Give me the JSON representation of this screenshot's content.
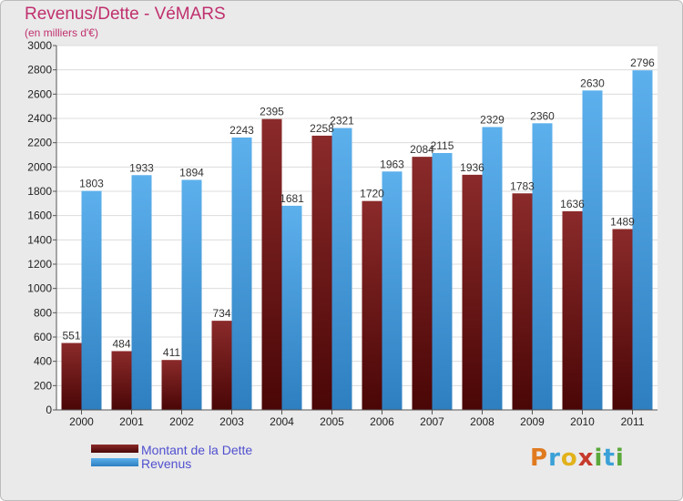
{
  "header": {
    "title": "Revenus/Dette - VéMARS",
    "subtitle": "(en milliers d'€)"
  },
  "logo": {
    "text": "Proxiti",
    "letters": [
      {
        "ch": "P",
        "color": "#e07a1f"
      },
      {
        "ch": "r",
        "color": "#3aa1d8"
      },
      {
        "ch": "o",
        "color": "#e2b21c"
      },
      {
        "ch": "x",
        "color": "#c63a2c"
      },
      {
        "ch": "i",
        "color": "#5aa83a"
      },
      {
        "ch": "t",
        "color": "#3aa1d8"
      },
      {
        "ch": "i",
        "color": "#5aa83a"
      }
    ]
  },
  "chart_data": {
    "type": "bar",
    "categories": [
      "2000",
      "2001",
      "2002",
      "2003",
      "2004",
      "2005",
      "2006",
      "2007",
      "2008",
      "2009",
      "2010",
      "2011"
    ],
    "series": [
      {
        "name": "Montant de la Dette",
        "values": [
          551,
          484,
          411,
          734,
          2395,
          2258,
          1720,
          2084,
          1936,
          1783,
          1636,
          1489
        ],
        "color": "#7a1f1f"
      },
      {
        "name": "Revenus",
        "values": [
          1803,
          1933,
          1894,
          2243,
          1681,
          2321,
          1963,
          2115,
          2329,
          2360,
          2630,
          2796
        ],
        "color": "#4ea3e4"
      }
    ],
    "ylim": [
      0,
      3000
    ],
    "yticks": [
      0,
      200,
      400,
      600,
      800,
      1000,
      1200,
      1400,
      1600,
      1800,
      2000,
      2200,
      2400,
      2600,
      2800,
      3000
    ],
    "grid": true,
    "legend_position": "bottom-left"
  }
}
